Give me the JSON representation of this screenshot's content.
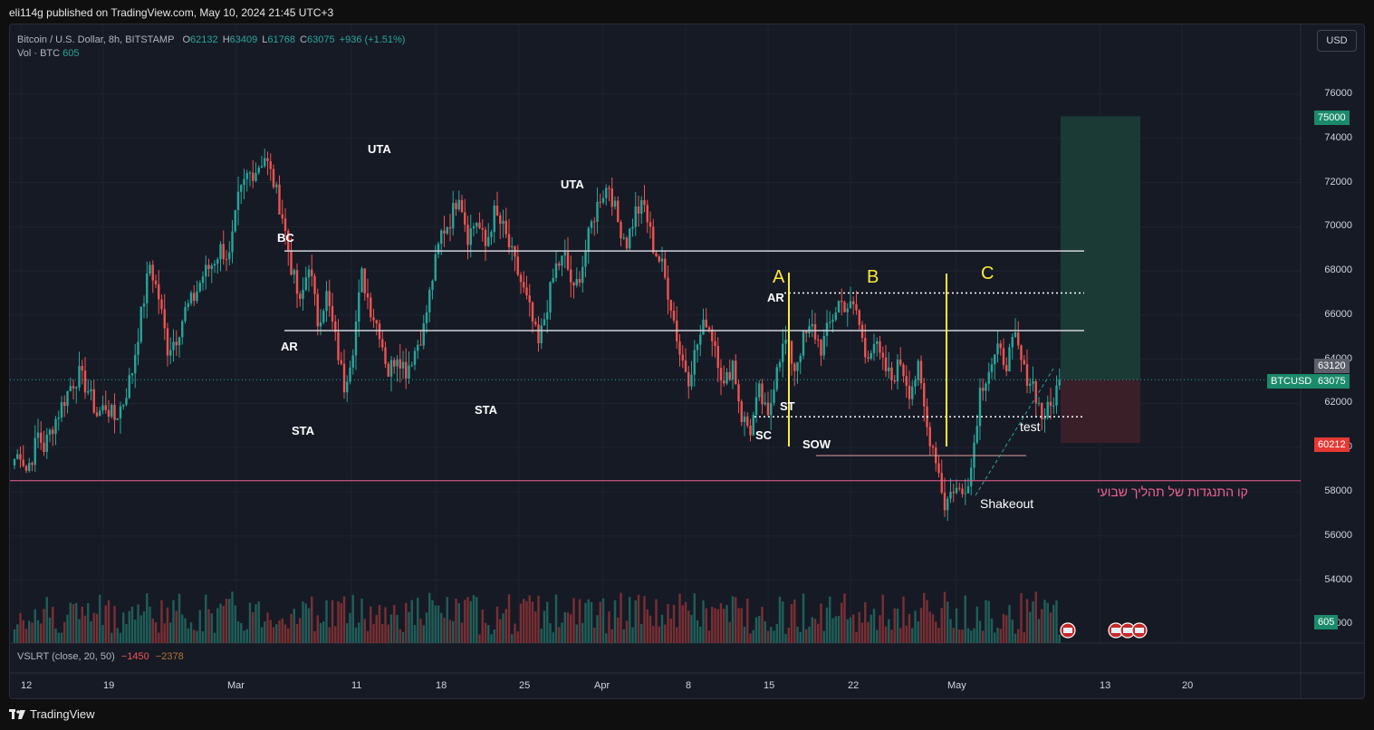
{
  "publisher": "eli114g published on TradingView.com, May 10, 2024 21:45 UTC+3",
  "legend": {
    "symbol": "Bitcoin / U.S. Dollar, 8h, BITSTAMP",
    "o_label": "O",
    "o": "62132",
    "h_label": "H",
    "h": "63409",
    "l_label": "L",
    "l": "61768",
    "c_label": "C",
    "c": "63075",
    "change": "+936 (+1.51%)",
    "vol_label": "Vol · BTC",
    "vol": "605"
  },
  "currency_button": "USD",
  "indicator": {
    "label": "VSLRT (close, 20, 50)",
    "v1": "−1450",
    "v2": "−2378"
  },
  "y_axis_ticks": [
    "76000",
    "74000",
    "72000",
    "70000",
    "68000",
    "66000",
    "64000",
    "62000",
    "60000",
    "58000",
    "56000",
    "54000",
    "52000"
  ],
  "x_axis_ticks": [
    "12",
    "19",
    "Mar",
    "11",
    "18",
    "25",
    "Apr",
    "8",
    "15",
    "22",
    "May",
    "13",
    "20"
  ],
  "price_tags": {
    "target": "75000",
    "hover": "63120",
    "symbol": "BTCUSD",
    "last": "63075",
    "stop": "60212",
    "volume": "605"
  },
  "annotations": {
    "bc": "BC",
    "uta1": "UTA",
    "uta2": "UTA",
    "ar1": "AR",
    "sta1": "STA",
    "sta2": "STA",
    "a": "A",
    "b": "B",
    "c": "C",
    "ar2": "AR",
    "sc": "SC",
    "st": "ST",
    "sow": "SOW",
    "shakeout": "Shakeout",
    "test": "test",
    "hebrew": "קו התנגדות של תהליך שבועי"
  },
  "brand": "TradingView",
  "colors": {
    "up": "#26a69a",
    "down": "#ef5350",
    "bg": "#161a25",
    "range_line": "#d1d4dc",
    "yellow": "#ffeb3b",
    "pink": "#f06292",
    "profit_zone": "#1b3a36",
    "loss_zone": "#3a1f28"
  },
  "chart_data": {
    "type": "candlestick",
    "ylim": [
      52000,
      77000
    ],
    "horizontal_levels": [
      68900,
      65300,
      58500
    ],
    "dotted_levels": [
      67000,
      61400
    ],
    "position": {
      "entry": 63075,
      "target": 75000,
      "stop": 60212
    },
    "path_points": [
      [
        0,
        59500
      ],
      [
        2,
        59800
      ],
      [
        4,
        59000
      ],
      [
        6,
        59600
      ],
      [
        8,
        60600
      ],
      [
        10,
        60000
      ],
      [
        13,
        61000
      ],
      [
        16,
        61900
      ],
      [
        19,
        62800
      ],
      [
        22,
        63300
      ],
      [
        25,
        62600
      ],
      [
        28,
        61500
      ],
      [
        31,
        61900
      ],
      [
        34,
        61300
      ],
      [
        37,
        62100
      ],
      [
        40,
        63500
      ],
      [
        43,
        66000
      ],
      [
        46,
        68300
      ],
      [
        49,
        66800
      ],
      [
        52,
        64500
      ],
      [
        55,
        65000
      ],
      [
        58,
        66200
      ],
      [
        61,
        66800
      ],
      [
        64,
        67800
      ],
      [
        67,
        68300
      ],
      [
        70,
        69000
      ],
      [
        73,
        68600
      ],
      [
        76,
        71200
      ],
      [
        79,
        72300
      ],
      [
        82,
        72600
      ],
      [
        85,
        73200
      ],
      [
        88,
        72000
      ],
      [
        91,
        70500
      ],
      [
        94,
        68200
      ],
      [
        97,
        66400
      ],
      [
        100,
        68400
      ],
      [
        103,
        65700
      ],
      [
        106,
        66900
      ],
      [
        109,
        64900
      ],
      [
        112,
        62800
      ],
      [
        115,
        64600
      ],
      [
        118,
        67800
      ],
      [
        121,
        66300
      ],
      [
        124,
        65300
      ],
      [
        127,
        63400
      ],
      [
        130,
        64300
      ],
      [
        133,
        63500
      ],
      [
        136,
        64400
      ],
      [
        139,
        65400
      ],
      [
        142,
        67700
      ],
      [
        145,
        69700
      ],
      [
        148,
        70300
      ],
      [
        151,
        71600
      ],
      [
        154,
        69600
      ],
      [
        157,
        70300
      ],
      [
        160,
        69100
      ],
      [
        163,
        70600
      ],
      [
        166,
        69900
      ],
      [
        169,
        68700
      ],
      [
        172,
        67500
      ],
      [
        175,
        66200
      ],
      [
        178,
        64600
      ],
      [
        181,
        66500
      ],
      [
        184,
        68200
      ],
      [
        187,
        68600
      ],
      [
        190,
        67000
      ],
      [
        193,
        68300
      ],
      [
        196,
        70100
      ],
      [
        199,
        71400
      ],
      [
        202,
        71900
      ],
      [
        205,
        70200
      ],
      [
        208,
        69300
      ],
      [
        211,
        70700
      ],
      [
        214,
        70900
      ],
      [
        217,
        69100
      ],
      [
        220,
        68200
      ],
      [
        223,
        66500
      ],
      [
        226,
        64300
      ],
      [
        229,
        63200
      ],
      [
        232,
        64700
      ],
      [
        235,
        65800
      ],
      [
        238,
        64700
      ],
      [
        241,
        62700
      ],
      [
        244,
        63900
      ],
      [
        247,
        61400
      ],
      [
        250,
        60800
      ],
      [
        253,
        62500
      ],
      [
        256,
        61200
      ],
      [
        259,
        63900
      ],
      [
        262,
        64800
      ],
      [
        265,
        63600
      ],
      [
        268,
        64900
      ],
      [
        271,
        65400
      ],
      [
        274,
        64500
      ],
      [
        277,
        65600
      ],
      [
        280,
        66600
      ],
      [
        283,
        66400
      ],
      [
        286,
        66200
      ],
      [
        289,
        64200
      ],
      [
        292,
        64800
      ],
      [
        295,
        63700
      ],
      [
        298,
        63100
      ],
      [
        301,
        63900
      ],
      [
        304,
        62600
      ],
      [
        307,
        63500
      ],
      [
        310,
        60900
      ],
      [
        313,
        59600
      ],
      [
        316,
        57400
      ],
      [
        319,
        58200
      ],
      [
        322,
        57900
      ],
      [
        325,
        59100
      ],
      [
        328,
        62600
      ],
      [
        331,
        63600
      ],
      [
        334,
        64300
      ],
      [
        337,
        63900
      ],
      [
        340,
        64900
      ],
      [
        343,
        63400
      ],
      [
        346,
        62900
      ],
      [
        349,
        61400
      ],
      [
        352,
        61800
      ],
      [
        355,
        63075
      ]
    ]
  }
}
